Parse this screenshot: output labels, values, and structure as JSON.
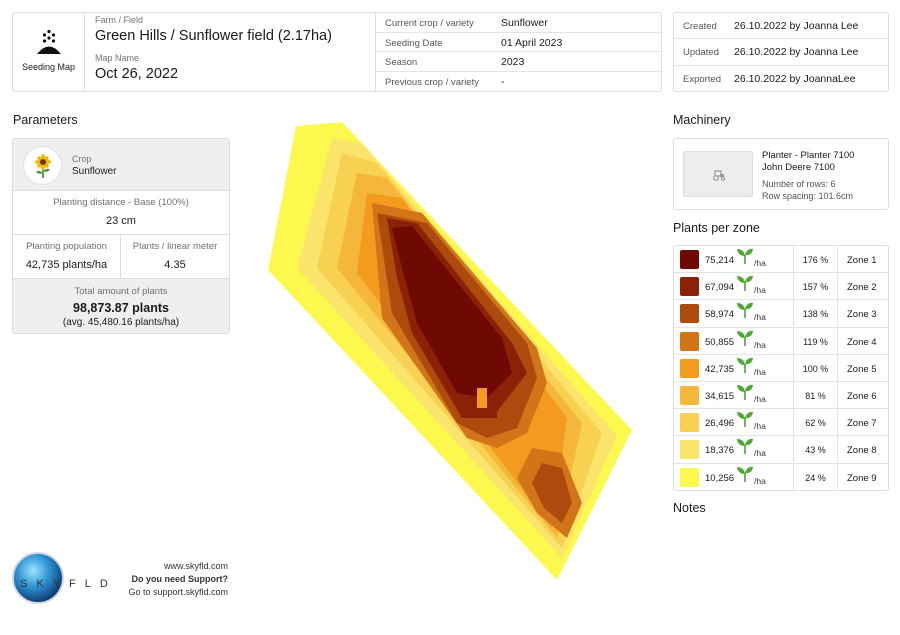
{
  "header": {
    "app_label": "Seeding Map",
    "farm_label": "Farm / Field",
    "farm_value": "Green Hills / Sunflower field (2.17ha)",
    "map_label": "Map Name",
    "map_value": "Oct 26, 2022",
    "grid": [
      {
        "key": "Current crop / variety",
        "value": "Sunflower"
      },
      {
        "key": "Seeding Date",
        "value": "01 April 2023"
      },
      {
        "key": "Season",
        "value": "2023"
      },
      {
        "key": "Previous crop / variety",
        "value": "-"
      }
    ]
  },
  "meta": [
    {
      "key": "Created",
      "value": "26.10.2022 by Joanna Lee"
    },
    {
      "key": "Updated",
      "value": "26.10.2022 by Joanna Lee"
    },
    {
      "key": "Exported",
      "value": "26.10.2022 by JoannaLee"
    }
  ],
  "sections": {
    "parameters": "Parameters",
    "machinery": "Machinery",
    "plants_per_zone": "Plants per zone",
    "notes": "Notes"
  },
  "params": {
    "crop_label": "Crop",
    "crop_value": "Sunflower",
    "distance_label": "Planting distance - Base (100%)",
    "distance_value": "23 cm",
    "population_label": "Planting population",
    "population_value": "42,735 plants/ha",
    "linear_label": "Plants / linear meter",
    "linear_value": "4.35",
    "total_label": "Total amount of plants",
    "total_value": "98,873.87  plants",
    "total_avg": "(avg. 45,480.16 plants/ha)"
  },
  "machinery": {
    "name": "Planter - Planter 7100",
    "model": "John Deere 7100",
    "rows": "Number of rows: 6",
    "spacing": "Row spacing: 101.6cm"
  },
  "zone_unit": "/ha",
  "zones": [
    {
      "value": "75,214",
      "pct": "176 %",
      "name": "Zone 1",
      "color": "#6e0a02"
    },
    {
      "value": "67,094",
      "pct": "157 %",
      "name": "Zone 2",
      "color": "#8c2205"
    },
    {
      "value": "58,974",
      "pct": "138 %",
      "name": "Zone 3",
      "color": "#ad4a0d"
    },
    {
      "value": "50,855",
      "pct": "119 %",
      "name": "Zone 4",
      "color": "#d27518"
    },
    {
      "value": "42,735",
      "pct": "100 %",
      "name": "Zone 5",
      "color": "#f29b1e"
    },
    {
      "value": "34,615",
      "pct": "81 %",
      "name": "Zone 6",
      "color": "#f5b73a"
    },
    {
      "value": "26,496",
      "pct": "62 %",
      "name": "Zone 7",
      "color": "#f8d152"
    },
    {
      "value": "18,376",
      "pct": "43 %",
      "name": "Zone 8",
      "color": "#fbe46c"
    },
    {
      "value": "10,256",
      "pct": "24 %",
      "name": "Zone 9",
      "color": "#fdf84e"
    }
  ],
  "footer": {
    "logo_text": "SKYFLD",
    "site": "www.skyfld.com",
    "support_q": "Do you need Support?",
    "support_link": "Go to support.skyfld.com"
  },
  "icons": [
    "seeding-icon",
    "sunflower-icon",
    "tractor-icon",
    "sprout-icon"
  ]
}
